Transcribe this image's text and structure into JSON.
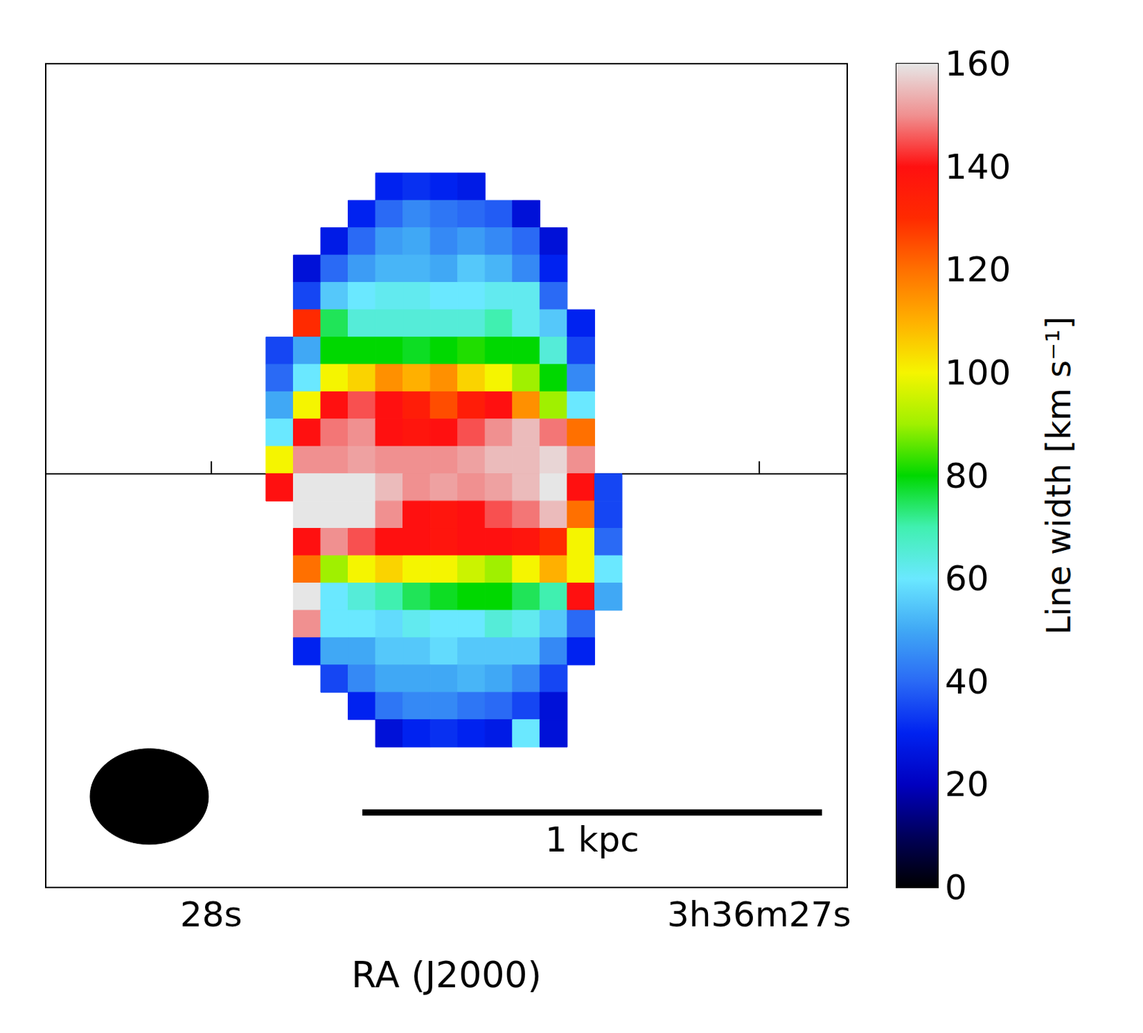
{
  "chart_data": {
    "type": "heatmap",
    "x_label": "RA (J2000)",
    "colorbar_label": "Line width [km s⁻¹]",
    "x": [
      27.875,
      27.825,
      27.775,
      27.725,
      27.675,
      27.625,
      27.575,
      27.525,
      27.475,
      27.425,
      27.375,
      27.325,
      27.275
    ],
    "y": [
      7.35,
      6.65,
      5.95,
      5.25,
      4.55,
      3.85,
      3.15,
      2.45,
      1.75,
      1.05,
      0.35,
      -0.35,
      -1.05,
      -1.75,
      -2.45,
      -3.15,
      -3.85,
      -4.55,
      -5.25,
      -5.95,
      -6.65
    ],
    "values": [
      [
        null,
        null,
        null,
        null,
        30,
        32,
        30,
        28,
        null,
        null,
        null,
        null,
        null
      ],
      [
        null,
        null,
        null,
        30,
        40,
        45,
        42,
        40,
        38,
        25,
        null,
        null,
        null
      ],
      [
        null,
        null,
        28,
        40,
        48,
        50,
        45,
        48,
        45,
        40,
        25,
        null,
        null
      ],
      [
        null,
        25,
        40,
        48,
        52,
        52,
        50,
        55,
        52,
        45,
        30,
        null,
        null
      ],
      [
        null,
        35,
        55,
        60,
        62,
        62,
        60,
        60,
        62,
        62,
        40,
        null,
        null
      ],
      [
        null,
        130,
        75,
        65,
        65,
        65,
        65,
        65,
        70,
        62,
        55,
        30,
        null
      ],
      [
        35,
        50,
        80,
        80,
        80,
        78,
        80,
        82,
        80,
        80,
        65,
        35,
        null
      ],
      [
        40,
        60,
        100,
        105,
        115,
        110,
        115,
        105,
        100,
        90,
        80,
        45,
        null
      ],
      [
        50,
        100,
        140,
        145,
        140,
        135,
        125,
        135,
        140,
        115,
        90,
        60,
        null
      ],
      [
        60,
        140,
        148,
        150,
        140,
        138,
        140,
        145,
        150,
        155,
        148,
        120,
        null
      ],
      [
        100,
        150,
        150,
        152,
        150,
        150,
        150,
        152,
        155,
        155,
        158,
        150,
        null
      ],
      [
        140,
        160,
        160,
        160,
        155,
        150,
        152,
        150,
        152,
        155,
        160,
        140,
        35
      ],
      [
        null,
        160,
        160,
        160,
        150,
        140,
        138,
        140,
        145,
        148,
        155,
        120,
        35
      ],
      [
        null,
        140,
        150,
        145,
        140,
        140,
        138,
        140,
        140,
        138,
        130,
        100,
        40
      ],
      [
        null,
        120,
        90,
        100,
        105,
        100,
        100,
        95,
        90,
        100,
        110,
        100,
        60
      ],
      [
        null,
        160,
        60,
        65,
        70,
        75,
        78,
        80,
        80,
        75,
        70,
        140,
        50
      ],
      [
        null,
        150,
        60,
        60,
        58,
        62,
        60,
        60,
        65,
        62,
        55,
        40,
        null
      ],
      [
        null,
        30,
        50,
        50,
        55,
        55,
        58,
        55,
        55,
        55,
        45,
        30,
        null
      ],
      [
        null,
        null,
        35,
        45,
        50,
        50,
        50,
        52,
        50,
        45,
        35,
        null,
        null
      ],
      [
        null,
        null,
        null,
        30,
        42,
        45,
        45,
        42,
        40,
        35,
        25,
        null,
        null
      ],
      [
        null,
        null,
        null,
        null,
        25,
        30,
        32,
        30,
        28,
        60,
        25,
        null,
        null
      ]
    ],
    "xlim": [
      28.302,
      26.839
    ],
    "xticks": [
      {
        "value": 28,
        "label": "28s"
      },
      {
        "value": 27,
        "label": "3h36m27s"
      }
    ],
    "ylim": [
      -10.6,
      10.5
    ],
    "tick_labels": "x",
    "colorbar_range": [
      0,
      160
    ],
    "colorbar_ticks": [
      0,
      20,
      40,
      60,
      80,
      100,
      120,
      140,
      160
    ],
    "beam": {
      "ra": 28.113,
      "dec": -8.27,
      "width_ra": 0.216,
      "height_dec": 2.45
    },
    "scale_bar": {
      "text": "1 kpc",
      "x": [
        27.724,
        26.885
      ],
      "y": -8.68
    }
  }
}
